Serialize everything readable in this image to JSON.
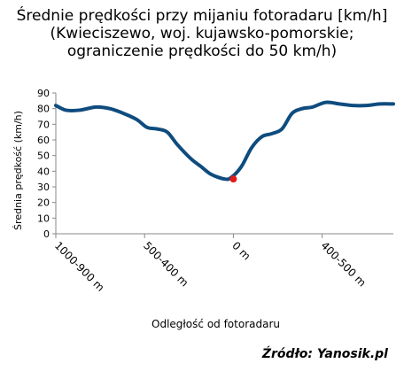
{
  "chart_data": {
    "type": "line",
    "title": [
      "Średnie prędkości przy mijaniu fotoradaru [km/h]",
      "(Kwieciszewo, woj. kujawsko-pomorskie;",
      "ograniczenie prędkości do 50 km/h)"
    ],
    "xlabel": "Odległość od fotoradaru",
    "ylabel": "Średnia prędkość (km/h)",
    "ylim": [
      0,
      90
    ],
    "yticks": [
      0,
      10,
      20,
      30,
      40,
      50,
      60,
      70,
      80,
      90
    ],
    "xticks": [
      "1000-900 m",
      "500-400 m",
      "0 m",
      "400-500 m"
    ],
    "grid": false,
    "series": [
      {
        "color": "#0f4c7e",
        "x": [
          0,
          0.03,
          0.07,
          0.12,
          0.16,
          0.2,
          0.24,
          0.27,
          0.3,
          0.33,
          0.36,
          0.4,
          0.43,
          0.46,
          0.5,
          0.52,
          0.55,
          0.58,
          0.61,
          0.64,
          0.67,
          0.7,
          0.73,
          0.76,
          0.8,
          0.84,
          0.88,
          0.92,
          0.96,
          1.0
        ],
        "values": [
          82,
          79,
          79,
          81,
          80,
          77,
          73,
          68,
          67,
          65,
          57,
          48,
          43,
          38,
          35,
          36,
          43,
          55,
          62,
          64,
          67,
          77,
          80,
          81,
          84,
          83,
          82,
          82,
          83,
          83
        ]
      }
    ],
    "marker": {
      "label": "0 m",
      "value": 35,
      "color": "#e41a1c"
    }
  },
  "source": "Źródło: Yanosik.pl"
}
